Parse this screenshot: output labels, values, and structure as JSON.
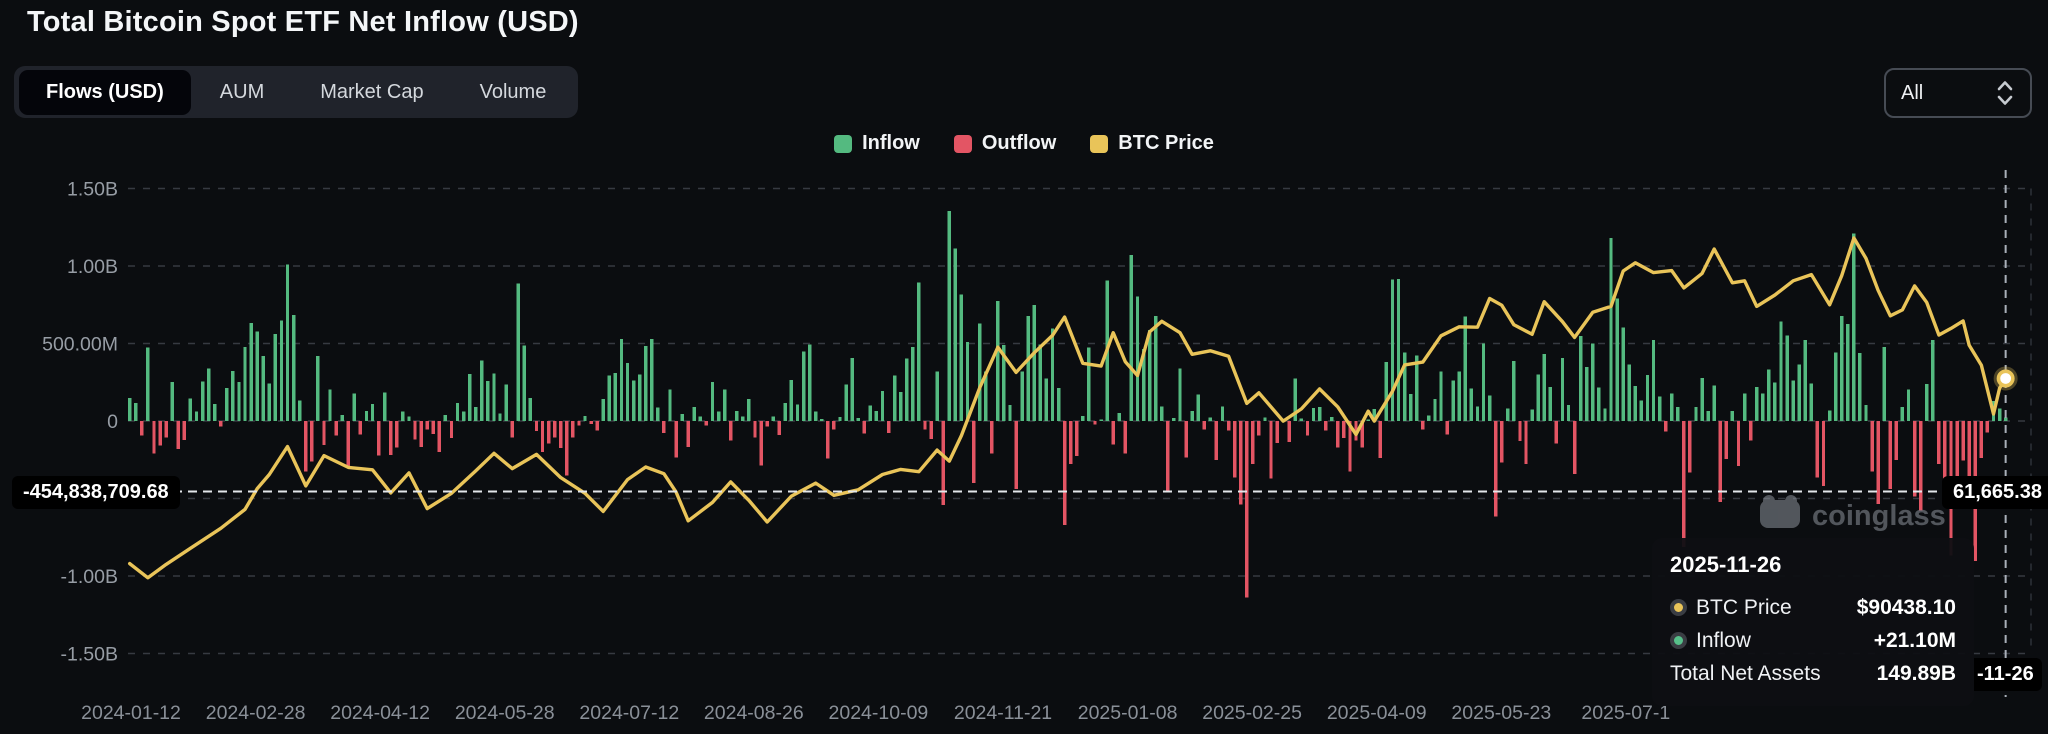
{
  "header": {
    "title": "Total Bitcoin Spot ETF Net Inflow (USD)",
    "tabs": [
      {
        "label": "Flows (USD)",
        "active": true
      },
      {
        "label": "AUM",
        "active": false
      },
      {
        "label": "Market Cap",
        "active": false
      },
      {
        "label": "Volume",
        "active": false
      }
    ],
    "filter_dropdown": {
      "value": "All"
    }
  },
  "legend": [
    {
      "label": "Inflow",
      "color": "#54ba80"
    },
    {
      "label": "Outflow",
      "color": "#e35564"
    },
    {
      "label": "BTC Price",
      "color": "#e9c459"
    }
  ],
  "watermark": {
    "text": "coinglass"
  },
  "crosshair": {
    "y_label_left": "-454,838,709.68",
    "y_label_right": "61,665.38",
    "x_label": "-11-26"
  },
  "tooltip": {
    "date": "2025-11-26",
    "rows": [
      {
        "label": "BTC Price",
        "value": "$90438.10",
        "dot": "#e9c459"
      },
      {
        "label": "Inflow",
        "value": "+21.10M",
        "dot": "#57c08a"
      },
      {
        "label": "Total Net Assets",
        "value": "149.89B",
        "dot": null
      }
    ]
  },
  "chart_data": {
    "type": "bar+line",
    "title": "Total Bitcoin Spot ETF Net Inflow (USD)",
    "grid": "dashed-horizontal",
    "legend_position": "top-center",
    "y_axis": {
      "unit": "USD",
      "range_M": [
        -1500,
        1500
      ],
      "ticks": [
        {
          "value_M": 1500,
          "label": "1.50B"
        },
        {
          "value_M": 1000,
          "label": "1.00B"
        },
        {
          "value_M": 500,
          "label": "500.00M"
        },
        {
          "value_M": 0,
          "label": "0"
        },
        {
          "value_M": -500,
          "label": ""
        },
        {
          "value_M": -1000,
          "label": "-1.00B"
        },
        {
          "value_M": -1500,
          "label": "-1.50B"
        }
      ]
    },
    "x_axis": {
      "labels": [
        "2024-01-12",
        "2024-02-28",
        "2024-04-12",
        "2024-05-28",
        "2024-07-12",
        "2024-08-26",
        "2024-10-09",
        "2024-11-21",
        "2025-01-08",
        "2025-02-25",
        "2025-04-09",
        "2025-05-23",
        "2025-07-1"
      ],
      "start": "2024-01-12",
      "end": "2025-11-26"
    },
    "series": [
      {
        "name": "Flows",
        "type": "bar",
        "unit": "million USD (positive = Inflow, negative = Outflow)",
        "values": [
          148,
          116,
          -95,
          475,
          -210,
          -158,
          -106,
          251,
          -180,
          -124,
          145,
          60,
          255,
          340,
          110,
          -36,
          212,
          324,
          251,
          476,
          631,
          576,
          420,
          243,
          562,
          648,
          1010,
          684,
          133,
          -326,
          -262,
          420,
          -154,
          203,
          -94,
          40,
          -302,
          179,
          -86,
          64,
          111,
          -224,
          183,
          -218,
          -170,
          62,
          30,
          -120,
          -168,
          -55,
          -85,
          -200,
          38,
          -110,
          117,
          60,
          303,
          89,
          390,
          257,
          305,
          48,
          235,
          -105,
          886,
          488,
          148,
          -64,
          -200,
          -146,
          -105,
          -174,
          -350,
          -106,
          -30,
          31,
          -20,
          -60,
          143,
          295,
          310,
          530,
          375,
          260,
          301,
          485,
          530,
          87,
          -78,
          202,
          -237,
          45,
          -168,
          90,
          28,
          -30,
          252,
          62,
          202,
          -127,
          65,
          30,
          143,
          -105,
          -288,
          -37,
          28,
          -91,
          117,
          263,
          105,
          447,
          494,
          61,
          12,
          -243,
          -54,
          26,
          235,
          406,
          18,
          -81,
          99,
          65,
          192,
          -79,
          294,
          188,
          402,
          479,
          893,
          -55,
          -116,
          320,
          -541,
          1356,
          1114,
          817,
          510,
          -400,
          630,
          320,
          -210,
          773,
          490,
          103,
          -438,
          320,
          676,
          747,
          492,
          274,
          598,
          212,
          -671,
          -277,
          -226,
          31,
          475,
          -23,
          5,
          908,
          -150,
          52,
          -210,
          1070,
          802,
          464,
          588,
          679,
          92,
          -457,
          18,
          340,
          -235,
          66,
          171,
          -56,
          22,
          -250,
          94,
          -61,
          -364,
          -539,
          -1140,
          -276,
          -94,
          22,
          -370,
          -143,
          13,
          -135,
          275,
          17,
          -93,
          84,
          89,
          -60,
          27,
          -172,
          -109,
          -326,
          -127,
          -171,
          1,
          76,
          -240,
          381,
          912,
          917,
          442,
          173,
          422,
          -56,
          36,
          142,
          320,
          -87,
          260,
          319,
          675,
          211,
          93,
          500,
          164,
          -616,
          -268,
          82,
          386,
          -128,
          -278,
          75,
          301,
          431,
          218,
          -145,
          408,
          102,
          -342,
          547,
          350,
          501,
          217,
          80,
          1180,
          790,
          602,
          363,
          226,
          131,
          297,
          523,
          157,
          -68,
          176,
          91,
          -812,
          -333,
          91,
          277,
          65,
          230,
          -523,
          -244,
          65,
          -291,
          179,
          -127,
          219,
          179,
          332,
          250,
          642,
          553,
          260,
          363,
          522,
          241,
          -363,
          -418,
          69,
          442,
          676,
          627,
          1210,
          440,
          102,
          -326,
          -536,
          477,
          -440,
          -250,
          90,
          202,
          -488,
          -577,
          240,
          524,
          -278,
          -400,
          -867,
          -492,
          -254,
          -372,
          -903,
          -239,
          -75,
          129,
          80,
          21.1
        ]
      },
      {
        "name": "BTC Price",
        "type": "line",
        "unit": "USD",
        "keypoints": [
          [
            0,
            43300
          ],
          [
            3,
            39700
          ],
          [
            6,
            43100
          ],
          [
            10,
            47200
          ],
          [
            15,
            52300
          ],
          [
            19,
            57100
          ],
          [
            21,
            62400
          ],
          [
            23,
            66000
          ],
          [
            26,
            73100
          ],
          [
            29,
            63100
          ],
          [
            32,
            70800
          ],
          [
            36,
            67800
          ],
          [
            40,
            67200
          ],
          [
            43,
            61300
          ],
          [
            46,
            66400
          ],
          [
            49,
            57300
          ],
          [
            53,
            61200
          ],
          [
            57,
            66900
          ],
          [
            60,
            71400
          ],
          [
            63,
            67500
          ],
          [
            67,
            71100
          ],
          [
            71,
            65200
          ],
          [
            75,
            61200
          ],
          [
            78,
            56600
          ],
          [
            82,
            64700
          ],
          [
            85,
            67900
          ],
          [
            88,
            66200
          ],
          [
            90,
            61500
          ],
          [
            92,
            54200
          ],
          [
            96,
            58900
          ],
          [
            99,
            64100
          ],
          [
            102,
            59400
          ],
          [
            105,
            53900
          ],
          [
            109,
            60500
          ],
          [
            113,
            63800
          ],
          [
            116,
            60700
          ],
          [
            120,
            62100
          ],
          [
            124,
            66000
          ],
          [
            127,
            67300
          ],
          [
            130,
            66700
          ],
          [
            133,
            72200
          ],
          [
            135,
            69400
          ],
          [
            137,
            75900
          ],
          [
            140,
            88000
          ],
          [
            143,
            98400
          ],
          [
            146,
            92000
          ],
          [
            149,
            97000
          ],
          [
            152,
            101400
          ],
          [
            154,
            106100
          ],
          [
            157,
            94300
          ],
          [
            160,
            93600
          ],
          [
            162,
            102100
          ],
          [
            164,
            94700
          ],
          [
            166,
            91200
          ],
          [
            168,
            102300
          ],
          [
            170,
            105000
          ],
          [
            173,
            102100
          ],
          [
            175,
            96600
          ],
          [
            178,
            97500
          ],
          [
            181,
            96100
          ],
          [
            184,
            84100
          ],
          [
            186,
            86800
          ],
          [
            190,
            79600
          ],
          [
            193,
            82700
          ],
          [
            196,
            87800
          ],
          [
            199,
            83200
          ],
          [
            202,
            76200
          ],
          [
            204,
            82100
          ],
          [
            205,
            79600
          ],
          [
            208,
            87200
          ],
          [
            210,
            93900
          ],
          [
            213,
            94600
          ],
          [
            216,
            101300
          ],
          [
            219,
            103600
          ],
          [
            222,
            103500
          ],
          [
            224,
            110800
          ],
          [
            226,
            109100
          ],
          [
            228,
            104100
          ],
          [
            231,
            101700
          ],
          [
            233,
            110000
          ],
          [
            236,
            104900
          ],
          [
            238,
            100900
          ],
          [
            241,
            107300
          ],
          [
            244,
            108800
          ],
          [
            246,
            117800
          ],
          [
            248,
            119900
          ],
          [
            251,
            117400
          ],
          [
            254,
            117900
          ],
          [
            256,
            113500
          ],
          [
            259,
            117200
          ],
          [
            261,
            123400
          ],
          [
            264,
            114800
          ],
          [
            266,
            115300
          ],
          [
            268,
            108800
          ],
          [
            271,
            111700
          ],
          [
            274,
            115300
          ],
          [
            277,
            116900
          ],
          [
            280,
            109200
          ],
          [
            282,
            116600
          ],
          [
            284,
            126200
          ],
          [
            286,
            121000
          ],
          [
            288,
            112900
          ],
          [
            290,
            106400
          ],
          [
            292,
            107900
          ],
          [
            294,
            114000
          ],
          [
            296,
            109800
          ],
          [
            298,
            101500
          ],
          [
            300,
            103200
          ],
          [
            302,
            105100
          ],
          [
            303,
            98900
          ],
          [
            305,
            93800
          ],
          [
            307,
            81400
          ],
          [
            308,
            88000
          ],
          [
            309,
            90438
          ]
        ]
      }
    ],
    "last_point": {
      "date": "2025-11-26",
      "btc_price": 90438.1,
      "inflow_M": 21.1,
      "total_net_assets": "149.89B"
    }
  }
}
